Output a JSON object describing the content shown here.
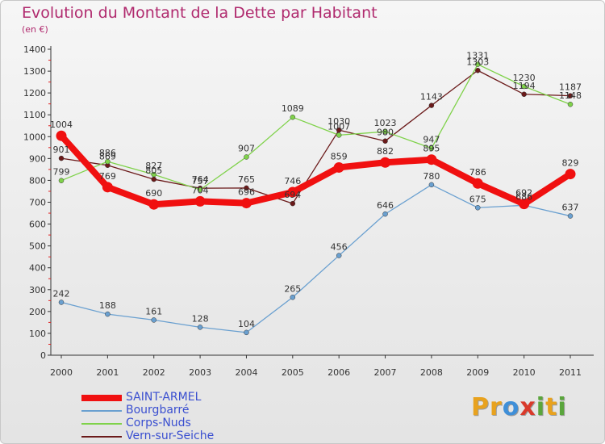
{
  "header": {
    "title": "Evolution du Montant de la Dette par Habitant",
    "unit": "(en €)"
  },
  "logo": {
    "text": "Proxiti",
    "letters": [
      {
        "ch": "P",
        "color": "#e8a21e"
      },
      {
        "ch": "r",
        "color": "#e8a21e"
      },
      {
        "ch": "o",
        "color": "#3f8fd8"
      },
      {
        "ch": "x",
        "color": "#d93a2b"
      },
      {
        "ch": "i",
        "color": "#5aa63c"
      },
      {
        "ch": "t",
        "color": "#e8a21e"
      },
      {
        "ch": "i",
        "color": "#5aa63c"
      }
    ]
  },
  "chart_data": {
    "type": "line",
    "title": "Evolution du Montant de la Dette par Habitant",
    "unit": "(en €)",
    "xlabel": "",
    "ylabel": "",
    "x": [
      "2000",
      "2001",
      "2002",
      "2003",
      "2004",
      "2005",
      "2006",
      "2007",
      "2008",
      "2009",
      "2010",
      "2011"
    ],
    "ylim": [
      0,
      1400
    ],
    "yticks": [
      0,
      100,
      200,
      300,
      400,
      500,
      600,
      700,
      800,
      900,
      1000,
      1100,
      1200,
      1300,
      1400
    ],
    "grid": false,
    "legend_position": "bottom-left",
    "series": [
      {
        "name": "Vern-sur-Seiche",
        "color": "#6b1a1a",
        "values": [
          901,
          869,
          805,
          764,
          765,
          694,
          1030,
          980,
          1143,
          1303,
          1194,
          1187
        ]
      },
      {
        "name": "Corps-Nuds",
        "color": "#7fd24a",
        "values": [
          799,
          886,
          827,
          757,
          907,
          1089,
          1007,
          1023,
          947,
          1331,
          1230,
          1148
        ]
      },
      {
        "name": "Bourgbarré",
        "color": "#6aa0d0",
        "values": [
          242,
          188,
          161,
          128,
          104,
          265,
          456,
          646,
          780,
          675,
          686,
          637
        ]
      },
      {
        "name": "SAINT-ARMEL",
        "color": "#f01010",
        "values": [
          1004,
          769,
          690,
          704,
          696,
          746,
          859,
          882,
          895,
          786,
          692,
          829
        ]
      }
    ]
  },
  "legend": [
    {
      "name": "SAINT-ARMEL",
      "color": "#f01010"
    },
    {
      "name": "Bourgbarré",
      "color": "#6aa0d0"
    },
    {
      "name": "Corps-Nuds",
      "color": "#7fd24a"
    },
    {
      "name": "Vern-sur-Seiche",
      "color": "#6b1a1a"
    }
  ]
}
